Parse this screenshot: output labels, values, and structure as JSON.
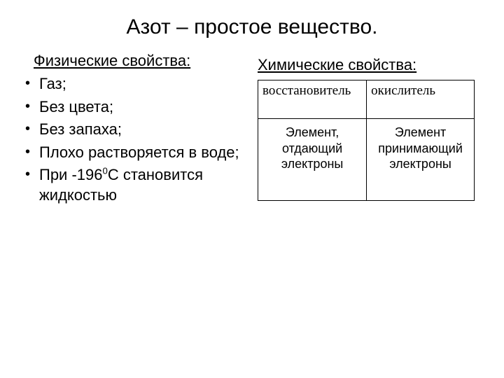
{
  "title": "Азот – простое вещество.",
  "left": {
    "subheading": "Физические свойства:",
    "items": [
      "Газ;",
      "Без цвета;",
      "Без запаха;",
      "Плохо растворяется в воде;"
    ],
    "last_item_prefix": "При -196",
    "last_item_sup": "0",
    "last_item_suffix": "С становится жидкостью"
  },
  "right": {
    "subheading": "Химические свойства:",
    "table": {
      "header": [
        "восстановитель",
        "окислитель"
      ],
      "row": [
        "Элемент, отдающий электроны",
        "Элемент принимающий электроны"
      ]
    }
  },
  "colors": {
    "background": "#ffffff",
    "text": "#000000",
    "border": "#000000"
  }
}
